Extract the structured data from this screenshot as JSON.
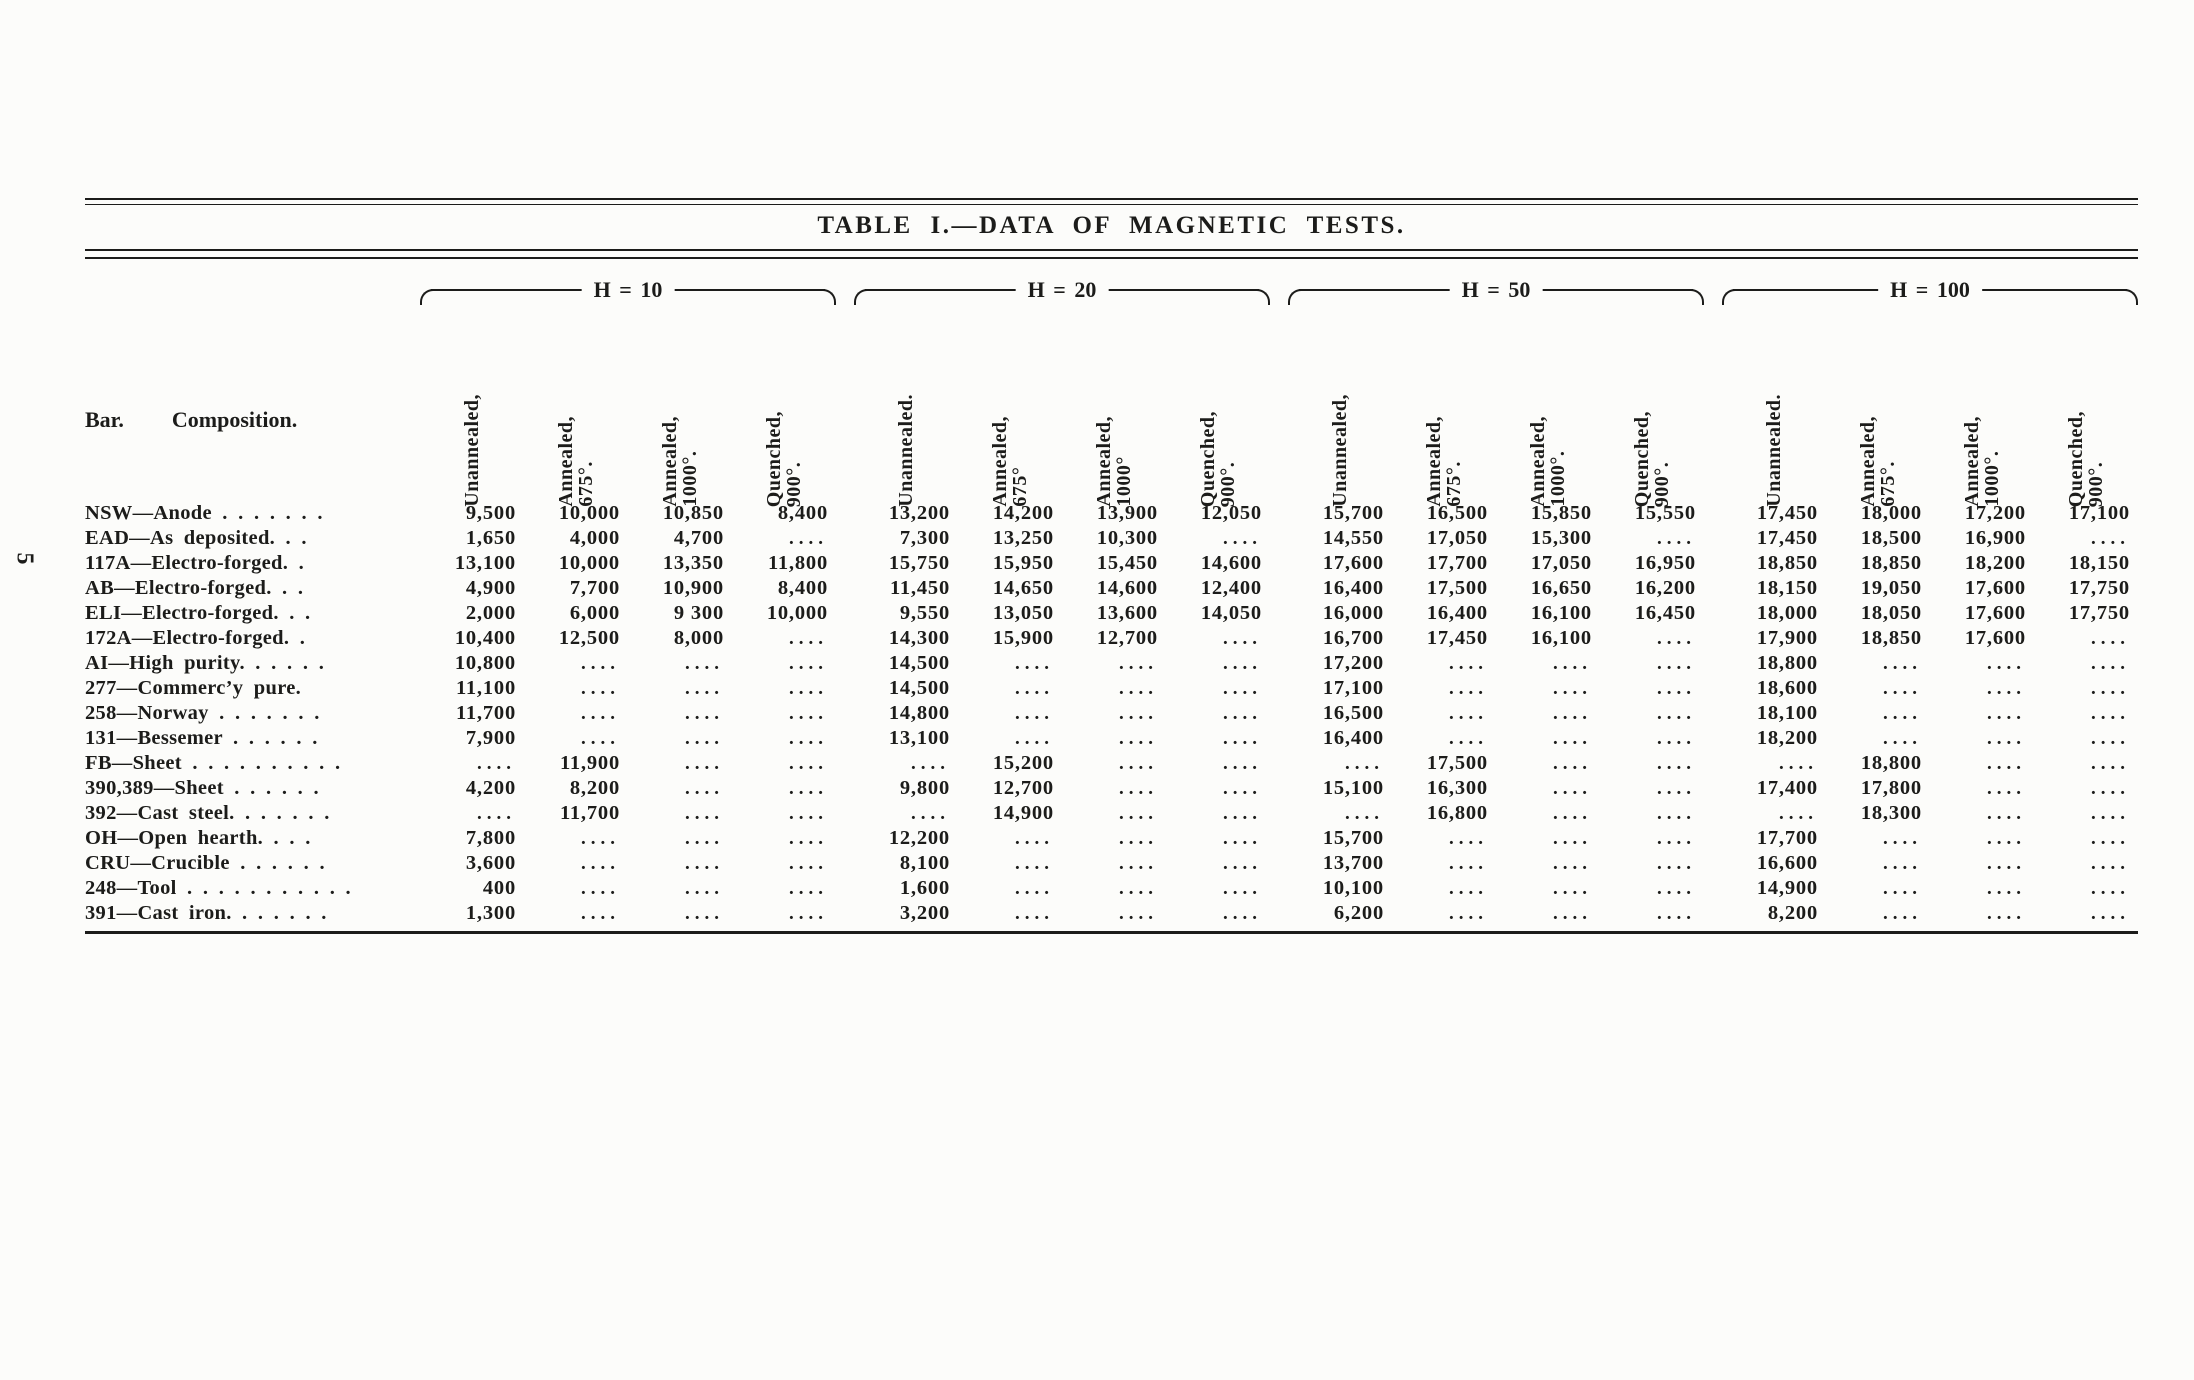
{
  "page": {
    "number": "5"
  },
  "table": {
    "title": "TABLE I.—DATA OF MAGNETIC TESTS.",
    "corner": {
      "bar": "Bar.",
      "composition": "Composition."
    },
    "empty_cell": "....",
    "groups": [
      {
        "label": "H = 10",
        "columns": [
          {
            "line1": "Unannealed,",
            "line2": ""
          },
          {
            "line1": "Annealed,",
            "line2": "675°."
          },
          {
            "line1": "Annealed,",
            "line2": "1000°."
          },
          {
            "line1": "Quenched,",
            "line2": "900°."
          }
        ]
      },
      {
        "label": "H = 20",
        "columns": [
          {
            "line1": "Unannealed.",
            "line2": ""
          },
          {
            "line1": "Annealed,",
            "line2": "675°"
          },
          {
            "line1": "Annealed,",
            "line2": "1000°"
          },
          {
            "line1": "Quenched,",
            "line2": "900°."
          }
        ]
      },
      {
        "label": "H = 50",
        "columns": [
          {
            "line1": "Unannealed,",
            "line2": ""
          },
          {
            "line1": "Annealed,",
            "line2": "675°."
          },
          {
            "line1": "Annealed,",
            "line2": "1000°."
          },
          {
            "line1": "Quenched,",
            "line2": "900°."
          }
        ]
      },
      {
        "label": "H = 100",
        "columns": [
          {
            "line1": "Unannealed.",
            "line2": ""
          },
          {
            "line1": "Annealed,",
            "line2": "675°."
          },
          {
            "line1": "Annealed,",
            "line2": "1000°."
          },
          {
            "line1": "Quenched,",
            "line2": "900°."
          }
        ]
      }
    ],
    "rows": [
      {
        "label": "NSW—Anode . . . . . . .",
        "values": [
          "9,500",
          "10,000",
          "10,850",
          "8,400",
          "13,200",
          "14,200",
          "13,900",
          "12,050",
          "15,700",
          "16,500",
          "15,850",
          "15,550",
          "17,450",
          "18,000",
          "17,200",
          "17,100"
        ]
      },
      {
        "label": "EAD—As deposited. . .",
        "values": [
          "1,650",
          "4,000",
          "4,700",
          "....",
          "7,300",
          "13,250",
          "10,300",
          "....",
          "14,550",
          "17,050",
          "15,300",
          "....",
          "17,450",
          "18,500",
          "16,900",
          "...."
        ]
      },
      {
        "label": "117A—Electro-forged. .",
        "values": [
          "13,100",
          "10,000",
          "13,350",
          "11,800",
          "15,750",
          "15,950",
          "15,450",
          "14,600",
          "17,600",
          "17,700",
          "17,050",
          "16,950",
          "18,850",
          "18,850",
          "18,200",
          "18,150"
        ]
      },
      {
        "label": "AB—Electro-forged. . .",
        "values": [
          "4,900",
          "7,700",
          "10,900",
          "8,400",
          "11,450",
          "14,650",
          "14,600",
          "12,400",
          "16,400",
          "17,500",
          "16,650",
          "16,200",
          "18,150",
          "19,050",
          "17,600",
          "17,750"
        ]
      },
      {
        "label": "ELI—Electro-forged. . .",
        "values": [
          "2,000",
          "6,000",
          "9 300",
          "10,000",
          "9,550",
          "13,050",
          "13,600",
          "14,050",
          "16,000",
          "16,400",
          "16,100",
          "16,450",
          "18,000",
          "18,050",
          "17,600",
          "17,750"
        ]
      },
      {
        "label": "172A—Electro-forged. .",
        "values": [
          "10,400",
          "12,500",
          "8,000",
          "....",
          "14,300",
          "15,900",
          "12,700",
          "....",
          "16,700",
          "17,450",
          "16,100",
          "....",
          "17,900",
          "18,850",
          "17,600",
          "...."
        ]
      },
      {
        "label": "AI—High purity. . . . . .",
        "values": [
          "10,800",
          "....",
          "....",
          "....",
          "14,500",
          "....",
          "....",
          "....",
          "17,200",
          "....",
          "....",
          "....",
          "18,800",
          "....",
          "....",
          "...."
        ]
      },
      {
        "label": "277—Commerc’y pure.",
        "values": [
          "11,100",
          "....",
          "....",
          "....",
          "14,500",
          "....",
          "....",
          "....",
          "17,100",
          "....",
          "....",
          "....",
          "18,600",
          "....",
          "....",
          "...."
        ]
      },
      {
        "label": "258—Norway . . . . . . .",
        "values": [
          "11,700",
          "....",
          "....",
          "....",
          "14,800",
          "....",
          "....",
          "....",
          "16,500",
          "....",
          "....",
          "....",
          "18,100",
          "....",
          "....",
          "...."
        ]
      },
      {
        "label": "131—Bessemer . . . . . .",
        "values": [
          "7,900",
          "....",
          "....",
          "....",
          "13,100",
          "....",
          "....",
          "....",
          "16,400",
          "....",
          "....",
          "....",
          "18,200",
          "....",
          "....",
          "...."
        ]
      },
      {
        "label": "FB—Sheet . . . . . . . . . .",
        "values": [
          "....",
          "11,900",
          "....",
          "....",
          "....",
          "15,200",
          "....",
          "....",
          "....",
          "17,500",
          "....",
          "....",
          "....",
          "18,800",
          "....",
          "...."
        ]
      },
      {
        "label": "390,389—Sheet . . . . . .",
        "values": [
          "4,200",
          "8,200",
          "....",
          "....",
          "9,800",
          "12,700",
          "....",
          "....",
          "15,100",
          "16,300",
          "....",
          "....",
          "17,400",
          "17,800",
          "....",
          "...."
        ]
      },
      {
        "label": "392—Cast steel. . . . . . .",
        "values": [
          "....",
          "11,700",
          "....",
          "....",
          "....",
          "14,900",
          "....",
          "....",
          "....",
          "16,800",
          "....",
          "....",
          "....",
          "18,300",
          "....",
          "...."
        ]
      },
      {
        "label": "OH—Open hearth. . . .",
        "values": [
          "7,800",
          "....",
          "....",
          "....",
          "12,200",
          "....",
          "....",
          "....",
          "15,700",
          "....",
          "....",
          "....",
          "17,700",
          "....",
          "....",
          "...."
        ]
      },
      {
        "label": "CRU—Crucible . . . . . .",
        "values": [
          "3,600",
          "....",
          "....",
          "....",
          "8,100",
          "....",
          "....",
          "....",
          "13,700",
          "....",
          "....",
          "....",
          "16,600",
          "....",
          "....",
          "...."
        ]
      },
      {
        "label": "248—Tool . . . . . . . . . . .",
        "values": [
          "400",
          "....",
          "....",
          "....",
          "1,600",
          "....",
          "....",
          "....",
          "10,100",
          "....",
          "....",
          "....",
          "14,900",
          "....",
          "....",
          "...."
        ]
      },
      {
        "label": "391—Cast iron. . . . . . .",
        "values": [
          "1,300",
          "....",
          "....",
          "....",
          "3,200",
          "....",
          "....",
          "....",
          "6,200",
          "....",
          "....",
          "....",
          "8,200",
          "....",
          "....",
          "...."
        ]
      }
    ]
  }
}
